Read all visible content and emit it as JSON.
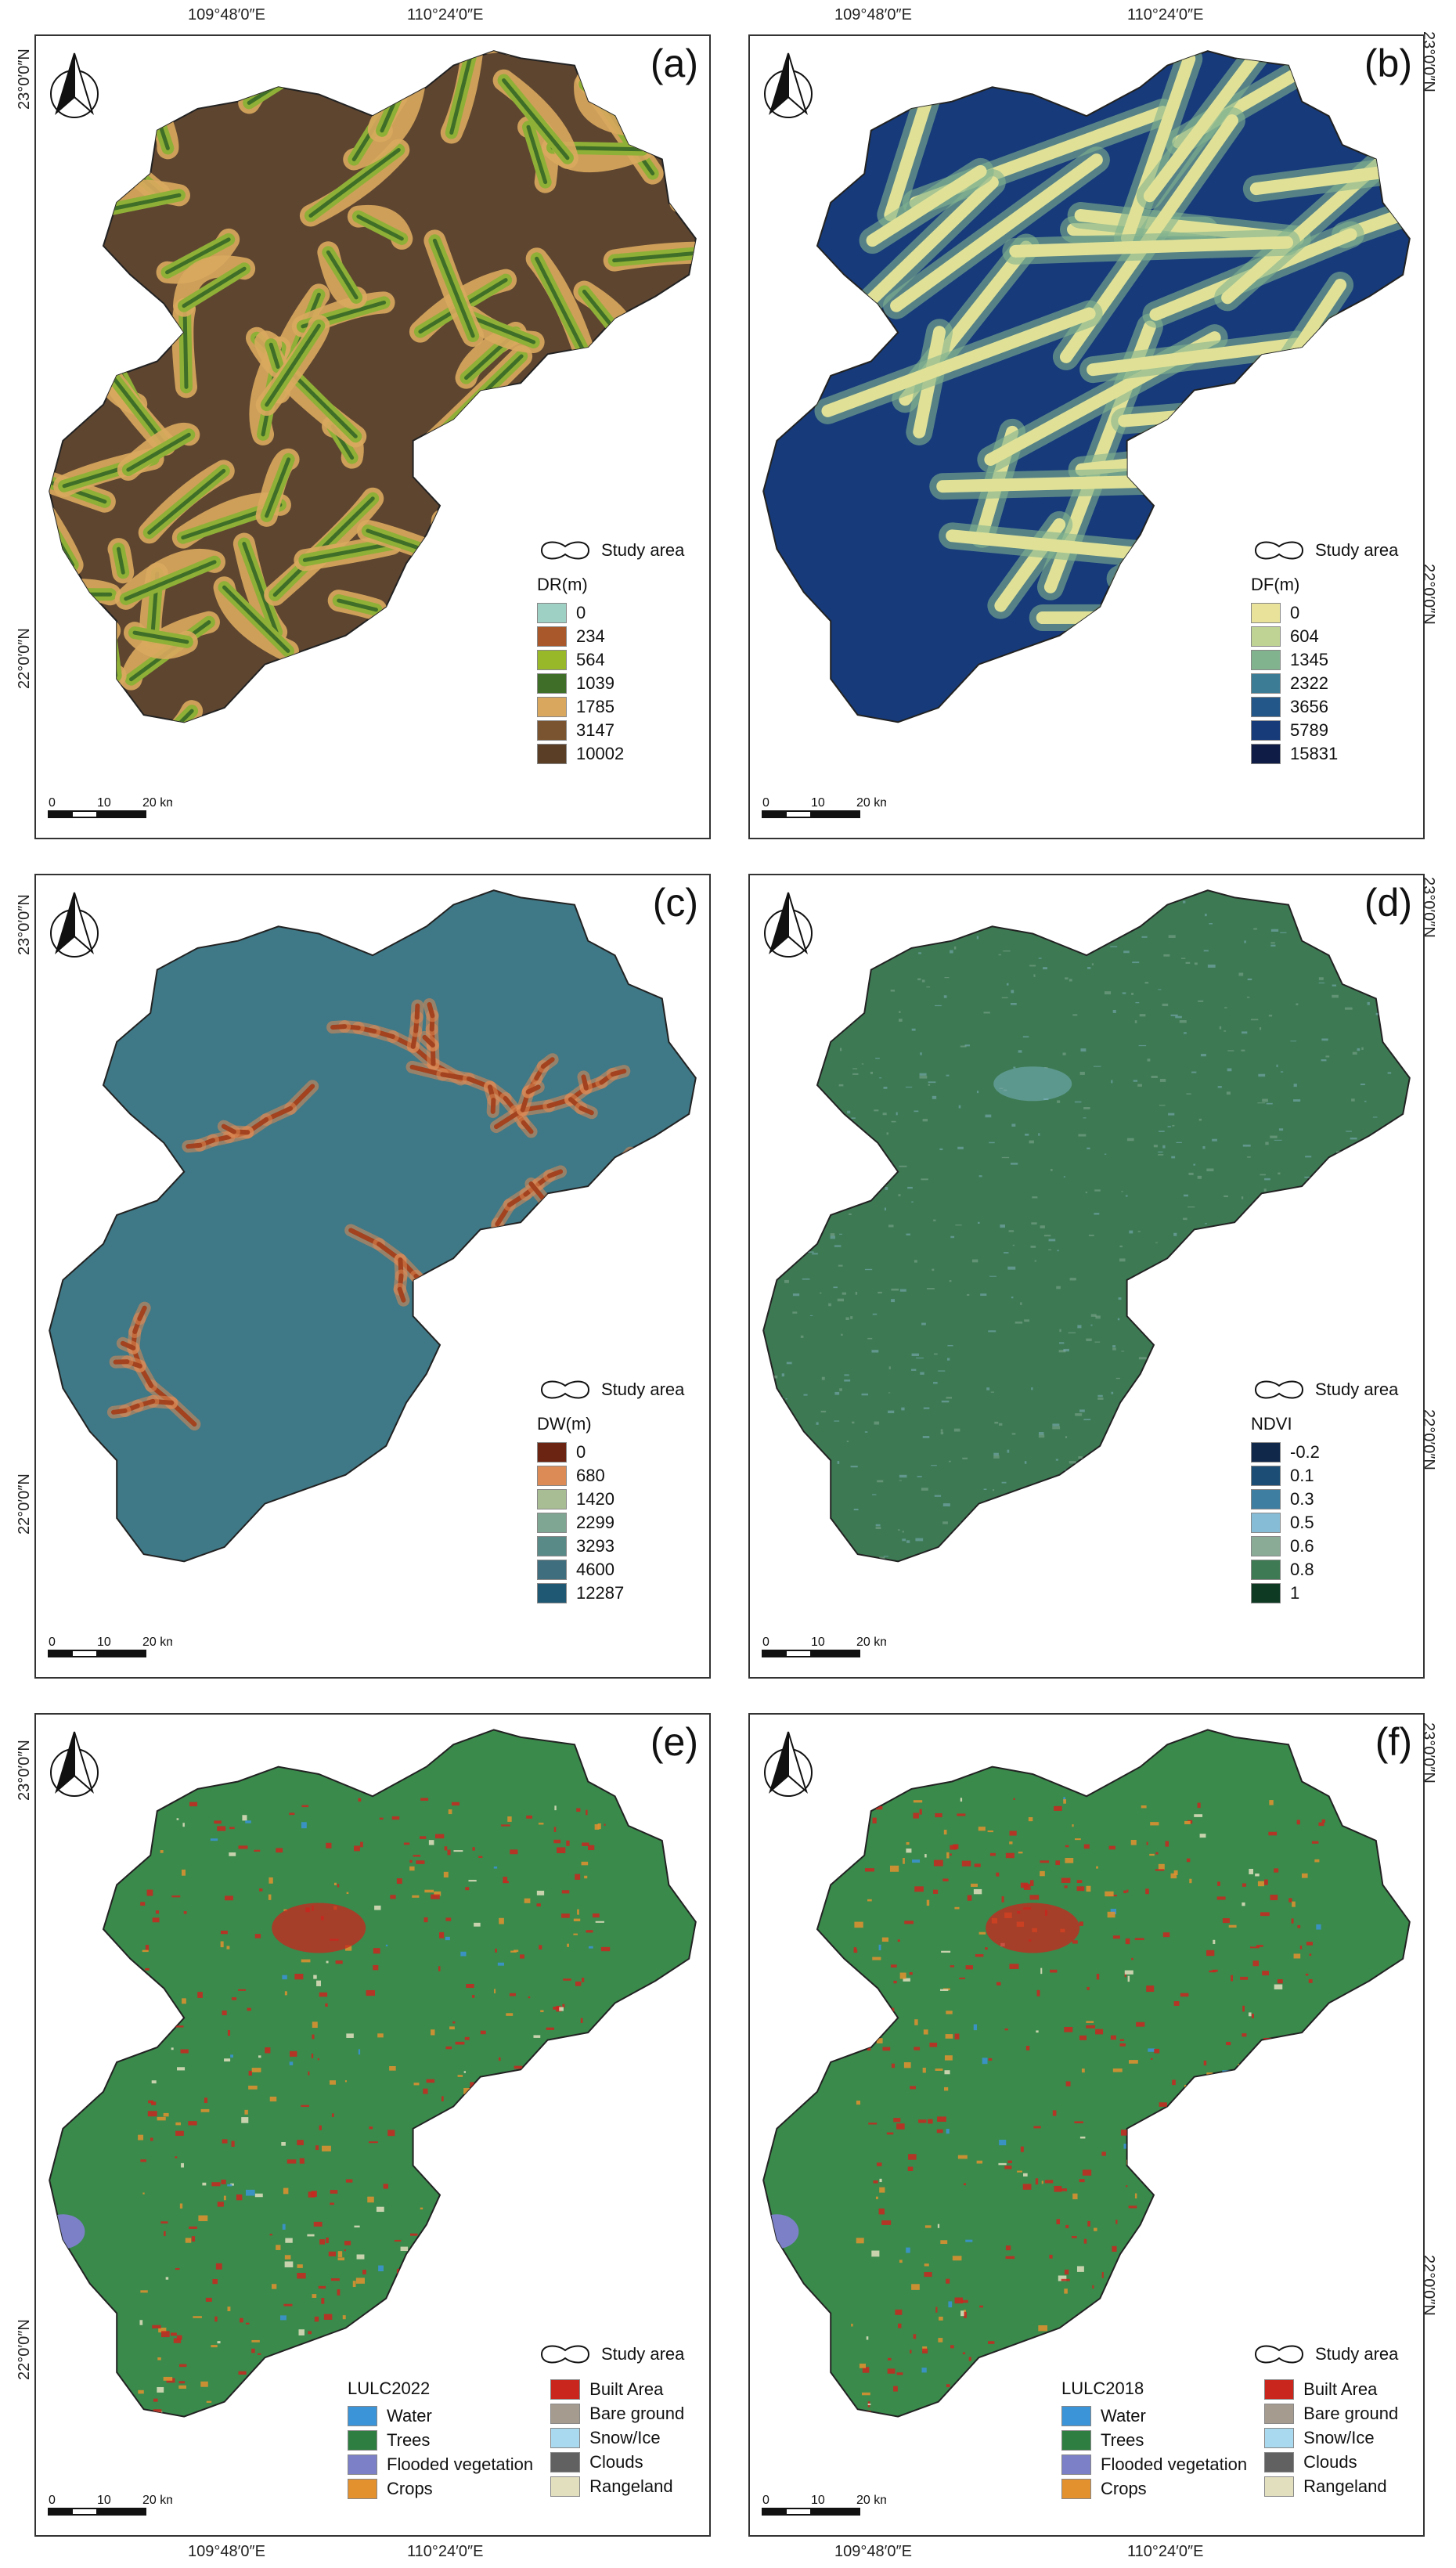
{
  "coords": {
    "top": [
      "109°48′0″E",
      "110°24′0″E",
      "109°48′0″E",
      "110°24′0″E"
    ],
    "bottom": [
      "109°48′0″E",
      "110°24′0″E",
      "109°48′0″E",
      "110°24′0″E"
    ],
    "left_23": "23°0′0″N",
    "left_22": "22°0′0″N",
    "right_23": "23°0′0″N",
    "right_22": "22°0′0″N"
  },
  "study_area_label": "Study area",
  "scale": {
    "labels": [
      "0",
      "10",
      "20 km"
    ]
  },
  "panels": [
    {
      "id": "a",
      "label": "(a)",
      "legend_title": "DR(m)",
      "legend": [
        {
          "value": "0",
          "color": "#9ed0c4"
        },
        {
          "value": "234",
          "color": "#a8582a"
        },
        {
          "value": "564",
          "color": "#98b82a"
        },
        {
          "value": "1039",
          "color": "#3f6e28"
        },
        {
          "value": "1785",
          "color": "#d9a85e"
        },
        {
          "value": "3147",
          "color": "#7a5430"
        },
        {
          "value": "10002",
          "color": "#5a3e26"
        }
      ],
      "map_fill": "#5e4530",
      "map_line": "#8fb036"
    },
    {
      "id": "b",
      "label": "(b)",
      "legend_title": "DF(m)",
      "legend": [
        {
          "value": "0",
          "color": "#e8e29a"
        },
        {
          "value": "604",
          "color": "#bfd494"
        },
        {
          "value": "1345",
          "color": "#82b38f"
        },
        {
          "value": "2322",
          "color": "#3d7c95"
        },
        {
          "value": "3656",
          "color": "#23578a"
        },
        {
          "value": "5789",
          "color": "#173a78"
        },
        {
          "value": "15831",
          "color": "#0e1c46"
        }
      ],
      "map_fill": "#163a7a",
      "map_line": "#e0e197"
    },
    {
      "id": "c",
      "label": "(c)",
      "legend_title": "DW(m)",
      "legend": [
        {
          "value": "0",
          "color": "#6b2411"
        },
        {
          "value": "680",
          "color": "#dd8b56"
        },
        {
          "value": "1420",
          "color": "#a9bd94"
        },
        {
          "value": "2299",
          "color": "#7fa692"
        },
        {
          "value": "3293",
          "color": "#5a8a88"
        },
        {
          "value": "4600",
          "color": "#3f6f7e"
        },
        {
          "value": "12287",
          "color": "#1e5873"
        }
      ],
      "map_fill": "#3f7886",
      "map_line": "#a3421e"
    },
    {
      "id": "d",
      "label": "(d)",
      "legend_title": "NDVI",
      "legend": [
        {
          "value": "-0.2",
          "color": "#10284a"
        },
        {
          "value": "0.1",
          "color": "#1c4e75"
        },
        {
          "value": "0.3",
          "color": "#3e7ea1"
        },
        {
          "value": "0.5",
          "color": "#86bcd5"
        },
        {
          "value": "0.6",
          "color": "#8aab96"
        },
        {
          "value": "0.8",
          "color": "#3e7b55"
        },
        {
          "value": "1",
          "color": "#0e3a24"
        }
      ],
      "map_fill": "#3d7a54",
      "map_line": "#86b4c6"
    },
    {
      "id": "e",
      "label": "(e)",
      "legend_title": "LULC2022",
      "map_fill": "#3a8a4c",
      "map_line": "#d2322b"
    },
    {
      "id": "f",
      "label": "(f)",
      "legend_title": "LULC2018",
      "map_fill": "#3a8a4c",
      "map_line": "#d2322b"
    }
  ],
  "lulc_classes": [
    [
      {
        "name": "Water",
        "color": "#3b93d8"
      },
      {
        "name": "Trees",
        "color": "#2f7e41"
      },
      {
        "name": "Flooded vegetation",
        "color": "#7b80c7"
      },
      {
        "name": "Crops",
        "color": "#e3912f"
      }
    ],
    [
      {
        "name": "Built Area",
        "color": "#c9261e"
      },
      {
        "name": "Bare ground",
        "color": "#a59b8f"
      },
      {
        "name": "Snow/Ice",
        "color": "#a8d9ee"
      },
      {
        "name": "Clouds",
        "color": "#616161"
      },
      {
        "name": "Rangeland",
        "color": "#e2dfbf"
      }
    ]
  ]
}
